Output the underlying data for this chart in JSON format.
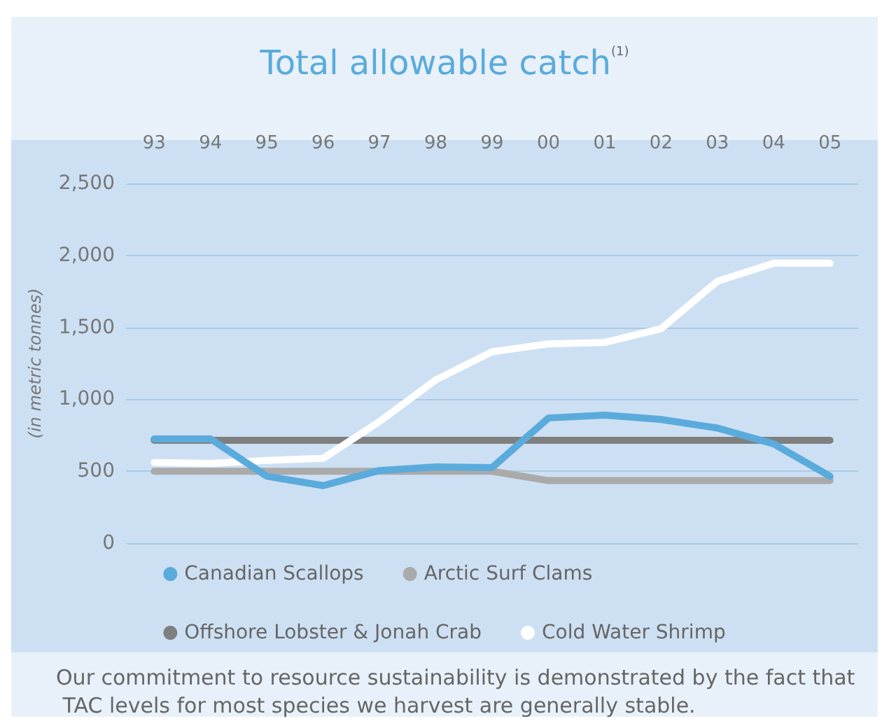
{
  "chart_data": {
    "type": "line",
    "title": "Total allowable catch$^{(1)}$",
    "ylabel": "(in metric tonnes)",
    "categories": [
      "93",
      "94",
      "95",
      "96",
      "97",
      "98",
      "99",
      "00",
      "01",
      "02",
      "03",
      "04",
      "05"
    ],
    "series": [
      {
        "name": "Canadian Scallops",
        "color": "#5aabdc",
        "values": [
          725,
          725,
          465,
          400,
          505,
          530,
          525,
          870,
          890,
          860,
          800,
          690,
          465
        ]
      },
      {
        "name": "Arctic Surf Clams",
        "color": "#aaaaaa",
        "values": [
          500,
          500,
          500,
          500,
          500,
          500,
          500,
          435,
          435,
          435,
          435,
          435,
          435
        ]
      },
      {
        "name": "Offshore Lobster & Jonah Crab",
        "color": "#7f7f7f",
        "values": [
          715,
          715,
          715,
          715,
          715,
          715,
          715,
          715,
          715,
          715,
          715,
          715,
          715
        ]
      },
      {
        "name": "Cold Water Shrimp",
        "color": "#ffffff",
        "values": [
          560,
          555,
          575,
          590,
          845,
          1135,
          1330,
          1385,
          1395,
          1490,
          1820,
          1945,
          1945
        ]
      }
    ],
    "ylim": [
      0,
      2500
    ],
    "yticks": [
      {
        "value": 0,
        "label": "0"
      },
      {
        "value": 500,
        "label": "500"
      },
      {
        "value": 1000,
        "label": "1,000"
      },
      {
        "value": 1500,
        "label": "1,500"
      },
      {
        "value": 2000,
        "label": "2,000"
      },
      {
        "value": 2500,
        "label": "2,500"
      }
    ],
    "grid": "y",
    "legend": "bottom",
    "marker": "none",
    "line_style": "solid",
    "annotations": [
      "Our commitment to resource sustainability is demonstrated by the fact that TAC levels for most species we harvest are generally stable."
    ]
  }
}
